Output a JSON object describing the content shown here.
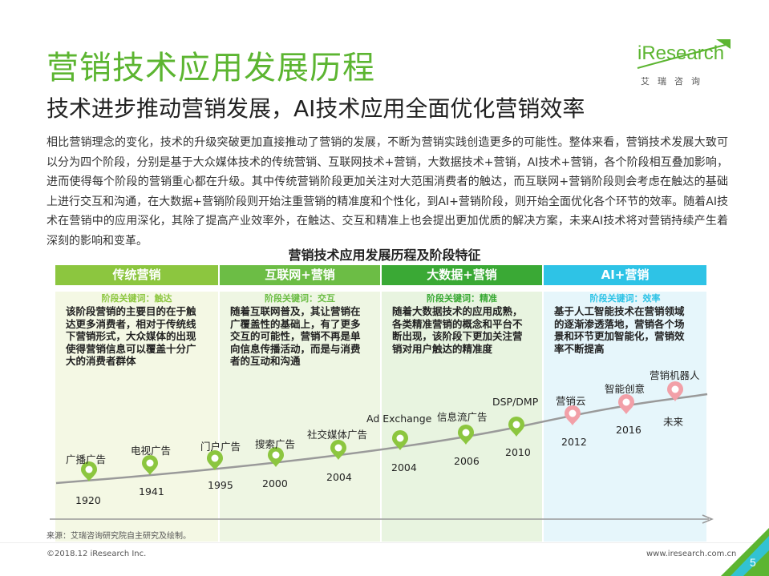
{
  "header": {
    "title": "营销技术应用发展历程",
    "subtitle": "技术进步推动营销发展，AI技术应用全面优化营销效率"
  },
  "logo": {
    "text": "iResearch",
    "cn": "艾瑞咨询",
    "color": "#5cb531"
  },
  "intro": "相比营销理念的变化，技术的升级突破更加直接推动了营销的发展，不断为营销实践创造更多的可能性。整体来看，营销技术发展大致可以分为四个阶段，分别是基于大众媒体技术的传统营销、互联网技术+营销，大数据技术+营销，AI技术+营销，各个阶段相互叠加影响，进而使得每个阶段的营销重心都在升级。其中传统营销阶段更加关注对大范围消费者的触达，而互联网+营销阶段则会考虑在触达的基础上进行交互和沟通，在大数据+营销阶段则开始注重营销的精准度和个性化，到AI+营销阶段，则开始全面优化各个环节的效率。随着AI技术在营销中的应用深化，其除了提高产业效率外，在触达、交互和精准上也会提出更加优质的解决方案，未来AI技术将对营销持续产生着深刻的影响和变革。",
  "chart_title": "营销技术应用发展历程及阶段特征",
  "phases": [
    {
      "name": "传统营销",
      "keyword": "阶段关键词：触达",
      "desc": "该阶段营销的主要目的在于触达更多消费者，相对于传统线下营销形式，大众媒体的出现使得营销信息可以覆盖十分广大的消费者群体",
      "head_color": "#8cc63f",
      "body_color": "#f4f8e4",
      "kw_color": "#8cc63f"
    },
    {
      "name": "互联网+营销",
      "keyword": "阶段关键词：交互",
      "desc": "随着互联网普及，其让营销在广覆盖性的基础上，有了更多交互的可能性，营销不再是单向信息传播活动，而是与消费者的互动和沟通",
      "head_color": "#6cbd45",
      "body_color": "#eef6e3",
      "kw_color": "#6cbd45"
    },
    {
      "name": "大数据+营销",
      "keyword": "阶段关键词：精准",
      "desc": "随着大数据技术的应用成熟，各类精准营销的概念和平台不断出现，该阶段下更加关注营销对用户触达的精准度",
      "head_color": "#3aa935",
      "body_color": "#e8f4e0",
      "kw_color": "#3aa935"
    },
    {
      "name": "AI+营销",
      "keyword": "阶段关键词：效率",
      "desc": "基于人工智能技术在营销领域的逐渐渗透落地，营销各个场景和环节更加智能化，营销效率不断提高",
      "head_color": "#2ec3e6",
      "body_color": "#e6f6fb",
      "kw_color": "#2ec3e6"
    }
  ],
  "milestones": [
    {
      "label": "广播广告",
      "year": "1920",
      "type": "green"
    },
    {
      "label": "电视广告",
      "year": "1941",
      "type": "green"
    },
    {
      "label": "门户广告",
      "year": "1995",
      "type": "green"
    },
    {
      "label": "搜索广告",
      "year": "2000",
      "type": "green"
    },
    {
      "label": "社交媒体广告",
      "year": "2004",
      "type": "green"
    },
    {
      "label": "Ad Exchange",
      "year": "2004",
      "type": "green"
    },
    {
      "label": "信息流广告",
      "year": "2006",
      "type": "green"
    },
    {
      "label": "DSP/DMP",
      "year": "2010",
      "type": "green"
    },
    {
      "label": "营销云",
      "year": "2012",
      "type": "pink"
    },
    {
      "label": "智能创意",
      "year": "2016",
      "type": "pink"
    },
    {
      "label": "营销机器人",
      "year": "未来",
      "type": "pink"
    }
  ],
  "colors": {
    "pin_green": "#8cc63f",
    "pin_pink": "#f2a0a8",
    "curve": "#999999"
  },
  "source": "来源：艾瑞咨询研究院自主研究及绘制。",
  "footer": {
    "copyright": "©2018.12 iResearch Inc.",
    "url": "www.iresearch.com.cn",
    "page": "5"
  }
}
